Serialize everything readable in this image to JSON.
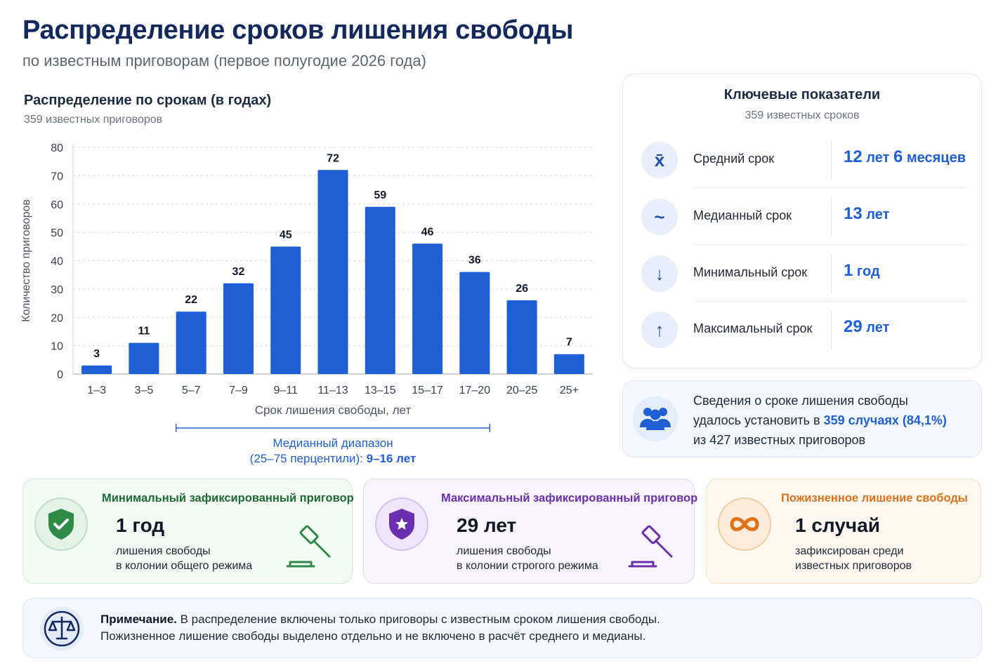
{
  "header": {
    "title": "Распределение сроков лишения свободы",
    "subtitle": "по известным приговорам (первое полугодие 2026 года)"
  },
  "chart_header": {
    "title": "Распределение по срокам (в годах)",
    "subtitle": "359 известных приговоров"
  },
  "chart_data": {
    "type": "bar",
    "categories": [
      "1–3",
      "3–5",
      "5–7",
      "7–9",
      "9–11",
      "11–13",
      "13–15",
      "15–17",
      "17–20",
      "20–25",
      "25+"
    ],
    "values": [
      3,
      11,
      22,
      32,
      45,
      72,
      59,
      46,
      36,
      26,
      7
    ],
    "title": "Распределение по срокам (в годах)",
    "xlabel": "Срок лишения свободы, лет",
    "ylabel": "Количество приговоров",
    "ylim": [
      0,
      80
    ],
    "yticks": [
      0,
      10,
      20,
      30,
      40,
      50,
      60,
      70,
      80
    ],
    "grid": true,
    "bar_color": "#1f5fd6",
    "annotation": {
      "range_categories": [
        "5–7",
        "17–20"
      ],
      "label_line1": "Медианный диапазон",
      "label_line2_prefix": "(25–75 перцентили): ",
      "label_line2_value": "9–16 лет"
    }
  },
  "key_metrics": {
    "title": "Ключевые показатели",
    "subtitle": "359 известных сроков",
    "items": [
      {
        "icon": "x-bar-icon",
        "glyph": "x̄",
        "label": "Средний срок",
        "n1": "12",
        "u1": "лет",
        "n2": "6",
        "u2": "месяцев"
      },
      {
        "icon": "tilde-icon",
        "glyph": "~",
        "label": "Медианный срок",
        "n1": "13",
        "u1": "лет",
        "n2": "",
        "u2": ""
      },
      {
        "icon": "arrow-down-icon",
        "glyph": "↓",
        "label": "Минимальный срок",
        "n1": "1",
        "u1": "год",
        "n2": "",
        "u2": ""
      },
      {
        "icon": "arrow-up-icon",
        "glyph": "↑",
        "label": "Максимальный срок",
        "n1": "29",
        "u1": "лет",
        "n2": "",
        "u2": ""
      }
    ]
  },
  "coverage": {
    "line1": "Сведения о сроке лишения свободы",
    "line2_prefix": "удалось установить в ",
    "line2_highlight": "359 случаях (84,1%)",
    "line3": "из 427 известных приговоров"
  },
  "cards": {
    "min": {
      "title": "Минимальный зафиксированный приговор",
      "value": "1 год",
      "desc1": "лишения свободы",
      "desc2": "в колонии общего режима",
      "color": "#2e8b47"
    },
    "max": {
      "title": "Максимальный зафиксированный приговор",
      "value": "29 лет",
      "desc1": "лишения свободы",
      "desc2": "в колонии строгого режима",
      "color": "#6a2fb0"
    },
    "life": {
      "title": "Пожизненное лишение свободы",
      "value": "1 случай",
      "desc1": "зафиксирован среди",
      "desc2": "известных приговоров",
      "color": "#e0711a"
    }
  },
  "note": {
    "label": "Примечание.",
    "line1": " В распределение включены только приговоры с известным сроком лишения свободы.",
    "line2": "Пожизненное лишение свободы выделено отдельно и не включено в расчёт среднего и медианы."
  }
}
